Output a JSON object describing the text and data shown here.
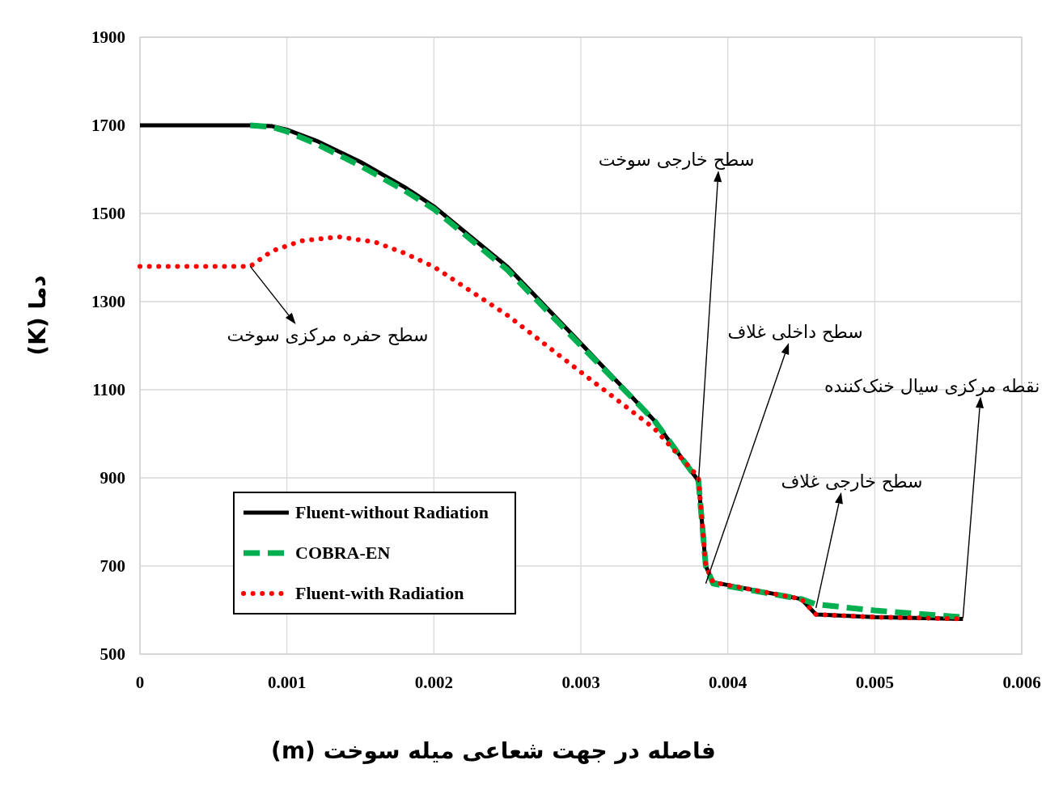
{
  "chart_data": {
    "type": "line",
    "xlabel": "فاصله در جهت شعاعی میله سوخت (m)",
    "ylabel": "دما (K)",
    "xlim": [
      0,
      0.006
    ],
    "ylim": [
      500,
      1900
    ],
    "xticks": [
      0,
      0.001,
      0.002,
      0.003,
      0.004,
      0.005,
      0.006
    ],
    "yticks": [
      500,
      700,
      900,
      1100,
      1300,
      1500,
      1700,
      1900
    ],
    "grid": true,
    "legend": "bottom left",
    "marker": "none",
    "series": [
      {
        "name": "Fluent-without Radiation",
        "color": "#000000",
        "line_style": "solid",
        "x": [
          0,
          0.00075,
          0.0009,
          0.001,
          0.0012,
          0.0015,
          0.0018,
          0.002,
          0.0025,
          0.003,
          0.0035,
          0.0038,
          0.00385,
          0.0039,
          0.0045,
          0.0046,
          0.005,
          0.0056
        ],
        "values": [
          1700,
          1700,
          1698,
          1690,
          1665,
          1617,
          1560,
          1516,
          1379,
          1205,
          1030,
          893,
          700,
          663,
          625,
          590,
          584,
          580
        ]
      },
      {
        "name": "COBRA-EN",
        "color": "#00b050",
        "line_style": "dashed",
        "x": [
          0.00075,
          0.0009,
          0.001,
          0.0012,
          0.0015,
          0.0018,
          0.002,
          0.0025,
          0.003,
          0.0035,
          0.0038,
          0.00385,
          0.0039,
          0.0045,
          0.0046,
          0.005,
          0.0056
        ],
        "values": [
          1700,
          1696,
          1686,
          1658,
          1608,
          1552,
          1510,
          1372,
          1200,
          1030,
          893,
          700,
          660,
          625,
          613,
          599,
          584
        ]
      },
      {
        "name": "Fluent-with Radiation",
        "color": "#ff0000",
        "line_style": "dotted",
        "x": [
          0,
          0.00075,
          0.0009,
          0.0011,
          0.00135,
          0.0016,
          0.0018,
          0.002,
          0.0025,
          0.003,
          0.0035,
          0.0038,
          0.00385,
          0.0039,
          0.0045,
          0.0046,
          0.005,
          0.0056
        ],
        "values": [
          1380,
          1380,
          1415,
          1438,
          1447,
          1435,
          1410,
          1379,
          1269,
          1140,
          1012,
          902,
          700,
          663,
          625,
          590,
          584,
          580
        ]
      }
    ],
    "annotations": [
      {
        "text": "سطح حفره مرکزی سوخت",
        "x": 0.00075,
        "y": 1380
      },
      {
        "text": "سطح خارجی سوخت",
        "x": 0.0038,
        "y": 890
      },
      {
        "text": "سطح داخلی غلاف",
        "x": 0.00385,
        "y": 660
      },
      {
        "text": "سطح خارجی غلاف",
        "x": 0.0046,
        "y": 605
      },
      {
        "text": "نقطه مرکزی سیال خنک‌کننده",
        "x": 0.0056,
        "y": 582
      }
    ]
  }
}
